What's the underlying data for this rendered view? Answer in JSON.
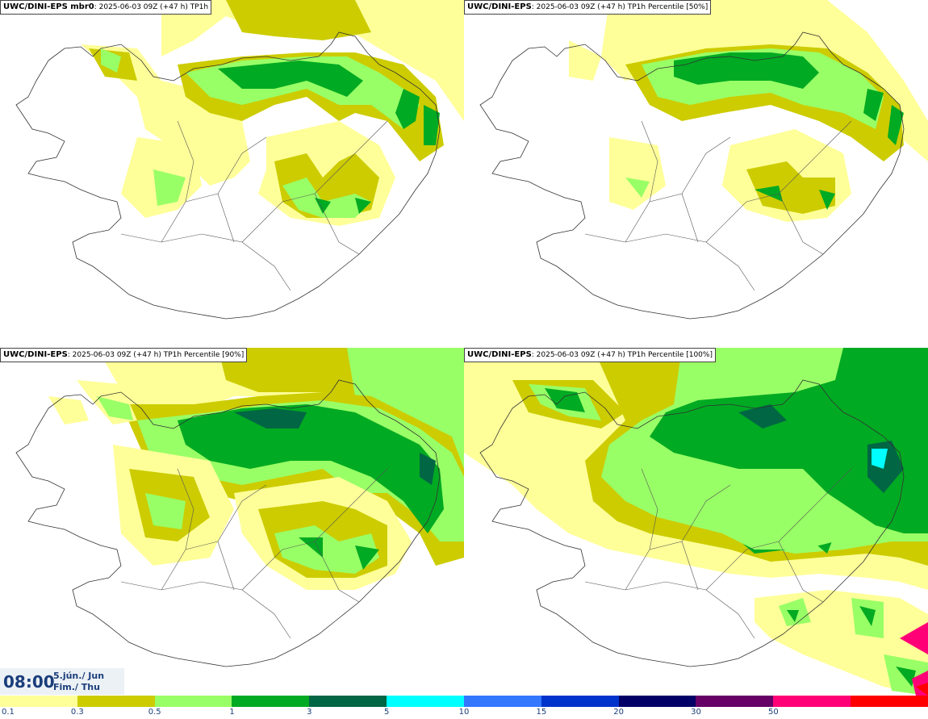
{
  "panels": [
    {
      "model": "UWC/DINI-EPS mbr0",
      "info": ": 2025-06-03 09Z (+47 h) TP1h"
    },
    {
      "model": "UWC/DINI-EPS",
      "info": ": 2025-06-03 09Z (+47 h) TP1h Percentile [50%]"
    },
    {
      "model": "UWC/DINI-EPS",
      "info": ": 2025-06-03 09Z (+47 h) TP1h Percentile [90%]"
    },
    {
      "model": "UWC/DINI-EPS",
      "info": ": 2025-06-03 09Z (+47 h) TP1h Percentile [100%]"
    }
  ],
  "valid_time": {
    "time": "08:00",
    "date_line1": "5.jún./ Jun",
    "date_line2": "Fim./ Thu"
  },
  "legend": {
    "colors": [
      "#ffff99",
      "#cccc00",
      "#99ff66",
      "#00aa22",
      "#006644",
      "#00ffff",
      "#3377ff",
      "#0033cc",
      "#000066",
      "#660066",
      "#ff0077",
      "#ff0000"
    ],
    "ticks": [
      "0.1",
      "0.3",
      "0.5",
      "1",
      "3",
      "5",
      "10",
      "15",
      "20",
      "30",
      "50"
    ]
  },
  "colors": {
    "c01": "#ffff99",
    "c03": "#cccc00",
    "c05": "#99ff66",
    "c1": "#00aa22",
    "c3": "#006644",
    "c5": "#00ffff",
    "coast": "#333333",
    "title_text": "#1a3d7a"
  }
}
